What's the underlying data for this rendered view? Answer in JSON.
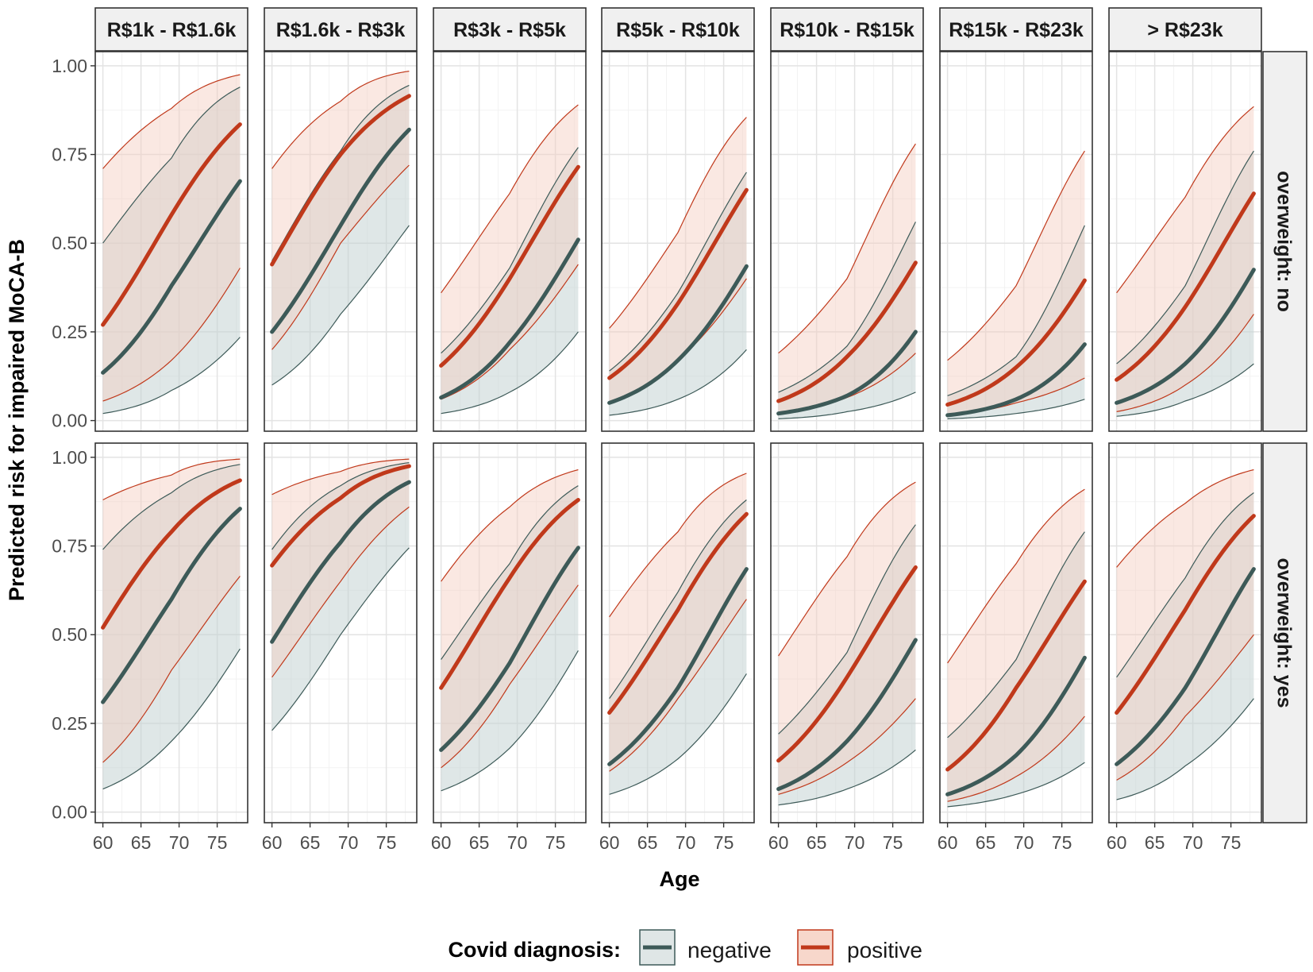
{
  "chart_data": {
    "type": "line",
    "subtype": "faceted line with confidence ribbons",
    "xlabel": "Age",
    "ylabel": "Predicted risk for impaired MoCA-B",
    "x_ticks": [
      60,
      65,
      70,
      75
    ],
    "y_ticks": [
      "0.00",
      "0.25",
      "0.50",
      "0.75",
      "1.00"
    ],
    "xlim": [
      59,
      79
    ],
    "ylim": [
      -0.03,
      1.04
    ],
    "x": [
      60,
      69,
      78
    ],
    "col_facets": [
      "R$1k - R$1.6k",
      "R$1.6k - R$3k",
      "R$3k - R$5k",
      "R$5k - R$10k",
      "R$10k - R$15k",
      "R$15k - R$23k",
      "> R$23k"
    ],
    "row_facets": [
      "overweight: no",
      "overweight: yes"
    ],
    "legend": {
      "title": "Covid diagnosis:",
      "position": "bottom",
      "items": [
        {
          "label": "negative",
          "color": "#3d5a58",
          "fill": "#dfe6e6"
        },
        {
          "label": "positive",
          "color": "#c0391b",
          "fill": "#f7d7cb"
        }
      ]
    },
    "series": {
      "negative": {
        "color": "#3d5a58",
        "ribbon": "#c5d3d3",
        "panels": [
          [
            {
              "fit": [
                0.135,
                0.38,
                0.675
              ],
              "lower": [
                0.02,
                0.085,
                0.235
              ],
              "upper": [
                0.5,
                0.74,
                0.94
              ]
            },
            {
              "fit": [
                0.25,
                0.55,
                0.82
              ],
              "lower": [
                0.1,
                0.3,
                0.55
              ],
              "upper": [
                0.45,
                0.76,
                0.945
              ]
            },
            {
              "fit": [
                0.065,
                0.22,
                0.51
              ],
              "lower": [
                0.02,
                0.08,
                0.25
              ],
              "upper": [
                0.19,
                0.43,
                0.77
              ]
            },
            {
              "fit": [
                0.05,
                0.17,
                0.435
              ],
              "lower": [
                0.015,
                0.06,
                0.2
              ],
              "upper": [
                0.14,
                0.36,
                0.7
              ]
            },
            {
              "fit": [
                0.02,
                0.07,
                0.25
              ],
              "lower": [
                0.005,
                0.025,
                0.08
              ],
              "upper": [
                0.08,
                0.21,
                0.56
              ]
            },
            {
              "fit": [
                0.015,
                0.06,
                0.215
              ],
              "lower": [
                0.005,
                0.02,
                0.06
              ],
              "upper": [
                0.07,
                0.18,
                0.55
              ]
            },
            {
              "fit": [
                0.05,
                0.16,
                0.425
              ],
              "lower": [
                0.012,
                0.055,
                0.16
              ],
              "upper": [
                0.16,
                0.38,
                0.76
              ]
            }
          ],
          [
            {
              "fit": [
                0.31,
                0.6,
                0.855
              ],
              "lower": [
                0.065,
                0.2,
                0.46
              ],
              "upper": [
                0.74,
                0.9,
                0.98
              ]
            },
            {
              "fit": [
                0.48,
                0.76,
                0.93
              ],
              "lower": [
                0.23,
                0.5,
                0.745
              ],
              "upper": [
                0.74,
                0.92,
                0.985
              ]
            },
            {
              "fit": [
                0.175,
                0.42,
                0.745
              ],
              "lower": [
                0.06,
                0.18,
                0.455
              ],
              "upper": [
                0.43,
                0.7,
                0.92
              ]
            },
            {
              "fit": [
                0.135,
                0.35,
                0.685
              ],
              "lower": [
                0.05,
                0.15,
                0.39
              ],
              "upper": [
                0.32,
                0.62,
                0.88
              ]
            },
            {
              "fit": [
                0.065,
                0.2,
                0.485
              ],
              "lower": [
                0.02,
                0.065,
                0.175
              ],
              "upper": [
                0.22,
                0.45,
                0.81
              ]
            },
            {
              "fit": [
                0.05,
                0.16,
                0.435
              ],
              "lower": [
                0.015,
                0.05,
                0.14
              ],
              "upper": [
                0.21,
                0.43,
                0.79
              ]
            },
            {
              "fit": [
                0.135,
                0.35,
                0.685
              ],
              "lower": [
                0.035,
                0.13,
                0.32
              ],
              "upper": [
                0.38,
                0.66,
                0.9
              ]
            }
          ]
        ]
      },
      "positive": {
        "color": "#c0391b",
        "ribbon": "#f3cdbf",
        "panels": [
          [
            {
              "fit": [
                0.27,
                0.58,
                0.835
              ],
              "lower": [
                0.055,
                0.17,
                0.43
              ],
              "upper": [
                0.71,
                0.88,
                0.975
              ]
            },
            {
              "fit": [
                0.44,
                0.75,
                0.915
              ],
              "lower": [
                0.2,
                0.5,
                0.72
              ],
              "upper": [
                0.71,
                0.9,
                0.985
              ]
            },
            {
              "fit": [
                0.155,
                0.4,
                0.715
              ],
              "lower": [
                0.06,
                0.2,
                0.44
              ],
              "upper": [
                0.36,
                0.64,
                0.89
              ]
            },
            {
              "fit": [
                0.12,
                0.33,
                0.65
              ],
              "lower": [
                0.05,
                0.17,
                0.4
              ],
              "upper": [
                0.26,
                0.53,
                0.855
              ]
            },
            {
              "fit": [
                0.055,
                0.18,
                0.445
              ],
              "lower": [
                0.02,
                0.065,
                0.19
              ],
              "upper": [
                0.19,
                0.4,
                0.78
              ]
            },
            {
              "fit": [
                0.045,
                0.15,
                0.395
              ],
              "lower": [
                0.015,
                0.05,
                0.12
              ],
              "upper": [
                0.17,
                0.38,
                0.76
              ]
            },
            {
              "fit": [
                0.115,
                0.32,
                0.64
              ],
              "lower": [
                0.025,
                0.1,
                0.3
              ],
              "upper": [
                0.36,
                0.63,
                0.885
              ]
            }
          ],
          [
            {
              "fit": [
                0.52,
                0.79,
                0.935
              ],
              "lower": [
                0.14,
                0.4,
                0.665
              ],
              "upper": [
                0.88,
                0.95,
                0.995
              ]
            },
            {
              "fit": [
                0.695,
                0.885,
                0.975
              ],
              "lower": [
                0.38,
                0.65,
                0.86
              ],
              "upper": [
                0.895,
                0.96,
                0.995
              ]
            },
            {
              "fit": [
                0.35,
                0.66,
                0.88
              ],
              "lower": [
                0.125,
                0.36,
                0.64
              ],
              "upper": [
                0.65,
                0.86,
                0.965
              ]
            },
            {
              "fit": [
                0.28,
                0.57,
                0.84
              ],
              "lower": [
                0.115,
                0.32,
                0.6
              ],
              "upper": [
                0.55,
                0.79,
                0.955
              ]
            },
            {
              "fit": [
                0.145,
                0.38,
                0.69
              ],
              "lower": [
                0.05,
                0.14,
                0.32
              ],
              "upper": [
                0.44,
                0.72,
                0.93
              ]
            },
            {
              "fit": [
                0.12,
                0.35,
                0.65
              ],
              "lower": [
                0.03,
                0.1,
                0.27
              ],
              "upper": [
                0.42,
                0.7,
                0.91
              ]
            },
            {
              "fit": [
                0.28,
                0.57,
                0.835
              ],
              "lower": [
                0.09,
                0.27,
                0.5
              ],
              "upper": [
                0.69,
                0.87,
                0.965
              ]
            }
          ]
        ]
      }
    }
  }
}
